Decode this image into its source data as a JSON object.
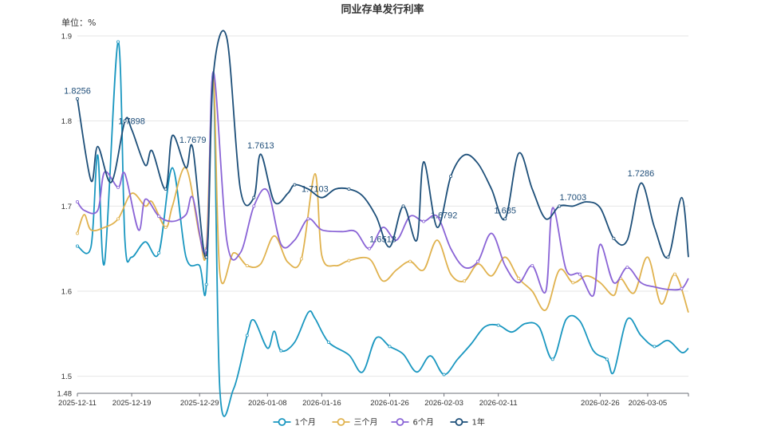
{
  "chart_data": {
    "type": "line",
    "title": "同业存单发行利率",
    "unit_label": "单位：%",
    "ylim": [
      1.48,
      1.9
    ],
    "yticks": [
      1.48,
      1.5,
      1.6,
      1.7,
      1.8,
      1.9
    ],
    "ytick_labels": [
      "1.48",
      "1.5",
      "1.6",
      "1.7",
      "1.8",
      "1.9"
    ],
    "x_start": "2025-12-11",
    "x_end": "2026-03-11",
    "xticks": [
      "2025-12-11",
      "2025-12-19",
      "2025-12-29",
      "2026-01-08",
      "2026-01-16",
      "2026-01-26",
      "2026-02-03",
      "2026-02-11",
      "2026-02-26",
      "2026-03-05"
    ],
    "grid": true,
    "legend_position": "bottom-center",
    "series": [
      {
        "name": "1个月",
        "color": "#1a97c0",
        "points": [
          [
            "2025-12-11",
            1.653
          ],
          [
            "2025-12-13",
            1.652
          ],
          [
            "2025-12-14",
            1.76
          ],
          [
            "2025-12-15",
            1.633
          ],
          [
            "2025-12-17",
            1.893
          ],
          [
            "2025-12-18",
            1.66
          ],
          [
            "2025-12-19",
            1.64
          ],
          [
            "2025-12-21",
            1.658
          ],
          [
            "2025-12-23",
            1.645
          ],
          [
            "2025-12-25",
            1.745
          ],
          [
            "2025-12-27",
            1.64
          ],
          [
            "2025-12-29",
            1.63
          ],
          [
            "2025-12-30",
            1.608
          ],
          [
            "2025-12-31",
            1.855
          ],
          [
            "2026-01-01",
            1.482
          ],
          [
            "2026-01-03",
            1.485
          ],
          [
            "2026-01-05",
            1.548
          ],
          [
            "2026-01-06",
            1.566
          ],
          [
            "2026-01-08",
            1.533
          ],
          [
            "2026-01-09",
            1.553
          ],
          [
            "2026-01-10",
            1.53
          ],
          [
            "2026-01-12",
            1.54
          ],
          [
            "2026-01-14",
            1.575
          ],
          [
            "2026-01-15",
            1.568
          ],
          [
            "2026-01-17",
            1.54
          ],
          [
            "2026-01-20",
            1.525
          ],
          [
            "2026-01-22",
            1.505
          ],
          [
            "2026-01-24",
            1.545
          ],
          [
            "2026-01-26",
            1.535
          ],
          [
            "2026-01-28",
            1.526
          ],
          [
            "2026-01-30",
            1.505
          ],
          [
            "2026-02-01",
            1.524
          ],
          [
            "2026-02-03",
            1.502
          ],
          [
            "2026-02-05",
            1.52
          ],
          [
            "2026-02-07",
            1.538
          ],
          [
            "2026-02-09",
            1.558
          ],
          [
            "2026-02-11",
            1.56
          ],
          [
            "2026-02-13",
            1.552
          ],
          [
            "2026-02-15",
            1.562
          ],
          [
            "2026-02-17",
            1.558
          ],
          [
            "2026-02-19",
            1.52
          ],
          [
            "2026-02-21",
            1.567
          ],
          [
            "2026-02-23",
            1.565
          ],
          [
            "2026-02-25",
            1.53
          ],
          [
            "2026-02-27",
            1.52
          ],
          [
            "2026-02-28",
            1.505
          ],
          [
            "2026-03-02",
            1.567
          ],
          [
            "2026-03-04",
            1.548
          ],
          [
            "2026-03-06",
            1.535
          ],
          [
            "2026-03-08",
            1.542
          ],
          [
            "2026-03-10",
            1.528
          ],
          [
            "2026-03-11",
            1.533
          ]
        ]
      },
      {
        "name": "三个月",
        "color": "#e0b24e",
        "points": [
          [
            "2025-12-11",
            1.668
          ],
          [
            "2025-12-12",
            1.69
          ],
          [
            "2025-12-13",
            1.672
          ],
          [
            "2025-12-15",
            1.675
          ],
          [
            "2025-12-17",
            1.685
          ],
          [
            "2025-12-19",
            1.715
          ],
          [
            "2025-12-21",
            1.7
          ],
          [
            "2025-12-22",
            1.705
          ],
          [
            "2025-12-24",
            1.675
          ],
          [
            "2025-12-25",
            1.7
          ],
          [
            "2025-12-27",
            1.745
          ],
          [
            "2025-12-29",
            1.665
          ],
          [
            "2025-12-30",
            1.65
          ],
          [
            "2025-12-31",
            1.853
          ],
          [
            "2026-01-01",
            1.62
          ],
          [
            "2026-01-03",
            1.645
          ],
          [
            "2026-01-05",
            1.63
          ],
          [
            "2026-01-07",
            1.632
          ],
          [
            "2026-01-09",
            1.665
          ],
          [
            "2026-01-11",
            1.634
          ],
          [
            "2026-01-13",
            1.638
          ],
          [
            "2026-01-15",
            1.738
          ],
          [
            "2026-01-16",
            1.642
          ],
          [
            "2026-01-18",
            1.63
          ],
          [
            "2026-01-20",
            1.636
          ],
          [
            "2026-01-23",
            1.638
          ],
          [
            "2026-01-25",
            1.612
          ],
          [
            "2026-01-27",
            1.625
          ],
          [
            "2026-01-29",
            1.635
          ],
          [
            "2026-01-31",
            1.625
          ],
          [
            "2026-02-02",
            1.66
          ],
          [
            "2026-02-04",
            1.62
          ],
          [
            "2026-02-06",
            1.612
          ],
          [
            "2026-02-08",
            1.632
          ],
          [
            "2026-02-10",
            1.618
          ],
          [
            "2026-02-12",
            1.64
          ],
          [
            "2026-02-14",
            1.615
          ],
          [
            "2026-02-16",
            1.6
          ],
          [
            "2026-02-18",
            1.578
          ],
          [
            "2026-02-20",
            1.625
          ],
          [
            "2026-02-22",
            1.61
          ],
          [
            "2026-02-24",
            1.618
          ],
          [
            "2026-02-26",
            1.61
          ],
          [
            "2026-02-28",
            1.595
          ],
          [
            "2026-03-01",
            1.615
          ],
          [
            "2026-03-03",
            1.598
          ],
          [
            "2026-03-05",
            1.64
          ],
          [
            "2026-03-07",
            1.585
          ],
          [
            "2026-03-09",
            1.62
          ],
          [
            "2026-03-11",
            1.575
          ]
        ]
      },
      {
        "name": "6个月",
        "color": "#8a64d6",
        "points": [
          [
            "2025-12-11",
            1.705
          ],
          [
            "2025-12-12",
            1.695
          ],
          [
            "2025-12-14",
            1.695
          ],
          [
            "2025-12-15",
            1.74
          ],
          [
            "2025-12-17",
            1.722
          ],
          [
            "2025-12-18",
            1.738
          ],
          [
            "2025-12-20",
            1.672
          ],
          [
            "2025-12-21",
            1.708
          ],
          [
            "2025-12-23",
            1.688
          ],
          [
            "2025-12-25",
            1.682
          ],
          [
            "2025-12-27",
            1.69
          ],
          [
            "2025-12-28",
            1.71
          ],
          [
            "2025-12-30",
            1.648
          ],
          [
            "2025-12-31",
            1.858
          ],
          [
            "2026-01-02",
            1.66
          ],
          [
            "2026-01-04",
            1.645
          ],
          [
            "2026-01-06",
            1.7
          ],
          [
            "2026-01-08",
            1.718
          ],
          [
            "2026-01-10",
            1.655
          ],
          [
            "2026-01-12",
            1.66
          ],
          [
            "2026-01-14",
            1.685
          ],
          [
            "2026-01-16",
            1.672
          ],
          [
            "2026-01-19",
            1.67
          ],
          [
            "2026-01-21",
            1.67
          ],
          [
            "2026-01-23",
            1.65
          ],
          [
            "2026-01-25",
            1.675
          ],
          [
            "2026-01-27",
            1.66
          ],
          [
            "2026-01-29",
            1.688
          ],
          [
            "2026-01-31",
            1.682
          ],
          [
            "2026-02-02",
            1.688
          ],
          [
            "2026-02-04",
            1.65
          ],
          [
            "2026-02-06",
            1.628
          ],
          [
            "2026-02-08",
            1.635
          ],
          [
            "2026-02-10",
            1.668
          ],
          [
            "2026-02-12",
            1.63
          ],
          [
            "2026-02-14",
            1.61
          ],
          [
            "2026-02-16",
            1.63
          ],
          [
            "2026-02-18",
            1.6
          ],
          [
            "2026-02-19",
            1.698
          ],
          [
            "2026-02-21",
            1.625
          ],
          [
            "2026-02-23",
            1.62
          ],
          [
            "2026-02-25",
            1.595
          ],
          [
            "2026-02-26",
            1.655
          ],
          [
            "2026-02-28",
            1.61
          ],
          [
            "2026-03-02",
            1.628
          ],
          [
            "2026-03-04",
            1.61
          ],
          [
            "2026-03-06",
            1.605
          ],
          [
            "2026-03-08",
            1.602
          ],
          [
            "2026-03-10",
            1.603
          ],
          [
            "2026-03-11",
            1.615
          ]
        ]
      },
      {
        "name": "1年",
        "color": "#1d4f79",
        "points": [
          [
            "2025-12-11",
            1.826
          ],
          [
            "2025-12-13",
            1.73
          ],
          [
            "2025-12-14",
            1.77
          ],
          [
            "2025-12-16",
            1.728
          ],
          [
            "2025-12-18",
            1.8
          ],
          [
            "2025-12-19",
            1.79
          ],
          [
            "2025-12-21",
            1.748
          ],
          [
            "2025-12-22",
            1.765
          ],
          [
            "2025-12-24",
            1.72
          ],
          [
            "2025-12-25",
            1.783
          ],
          [
            "2025-12-27",
            1.745
          ],
          [
            "2025-12-28",
            1.768
          ],
          [
            "2025-12-30",
            1.64
          ],
          [
            "2025-12-31",
            1.852
          ],
          [
            "2026-01-02",
            1.898
          ],
          [
            "2026-01-04",
            1.72
          ],
          [
            "2026-01-06",
            1.71
          ],
          [
            "2026-01-07",
            1.761
          ],
          [
            "2026-01-09",
            1.705
          ],
          [
            "2026-01-11",
            1.715
          ],
          [
            "2026-01-12",
            1.725
          ],
          [
            "2026-01-14",
            1.72
          ],
          [
            "2026-01-16",
            1.71
          ],
          [
            "2026-01-18",
            1.72
          ],
          [
            "2026-01-20",
            1.72
          ],
          [
            "2026-01-22",
            1.712
          ],
          [
            "2026-01-24",
            1.688
          ],
          [
            "2026-01-26",
            1.652
          ],
          [
            "2026-01-28",
            1.7
          ],
          [
            "2026-01-30",
            1.66
          ],
          [
            "2026-01-31",
            1.752
          ],
          [
            "2026-02-02",
            1.675
          ],
          [
            "2026-02-04",
            1.735
          ],
          [
            "2026-02-06",
            1.76
          ],
          [
            "2026-02-08",
            1.75
          ],
          [
            "2026-02-10",
            1.72
          ],
          [
            "2026-02-12",
            1.685
          ],
          [
            "2026-02-14",
            1.762
          ],
          [
            "2026-02-16",
            1.72
          ],
          [
            "2026-02-18",
            1.685
          ],
          [
            "2026-02-20",
            1.7
          ],
          [
            "2026-02-22",
            1.7
          ],
          [
            "2026-02-24",
            1.705
          ],
          [
            "2026-02-26",
            1.698
          ],
          [
            "2026-02-28",
            1.662
          ],
          [
            "2026-03-02",
            1.66
          ],
          [
            "2026-03-04",
            1.727
          ],
          [
            "2026-03-06",
            1.675
          ],
          [
            "2026-03-08",
            1.64
          ],
          [
            "2026-03-10",
            1.71
          ],
          [
            "2026-03-11",
            1.64
          ]
        ]
      }
    ],
    "annotations": [
      {
        "date": "2025-12-11",
        "value": 1.8256,
        "text": "1.8256"
      },
      {
        "date": "2025-12-19",
        "value": 1.7898,
        "text": "1.7898"
      },
      {
        "date": "2025-12-28",
        "value": 1.7679,
        "text": "1.7679"
      },
      {
        "date": "2026-01-07",
        "value": 1.7613,
        "text": "1.7613"
      },
      {
        "date": "2026-01-15",
        "value": 1.7103,
        "text": "1.7103"
      },
      {
        "date": "2026-01-25",
        "value": 1.6513,
        "text": "1.6513"
      },
      {
        "date": "2026-02-03",
        "value": 1.6792,
        "text": "1.6792"
      },
      {
        "date": "2026-02-12",
        "value": 1.685,
        "text": "1.685"
      },
      {
        "date": "2026-02-22",
        "value": 1.7003,
        "text": "1.7003"
      },
      {
        "date": "2026-03-04",
        "value": 1.7286,
        "text": "1.7286"
      }
    ]
  }
}
